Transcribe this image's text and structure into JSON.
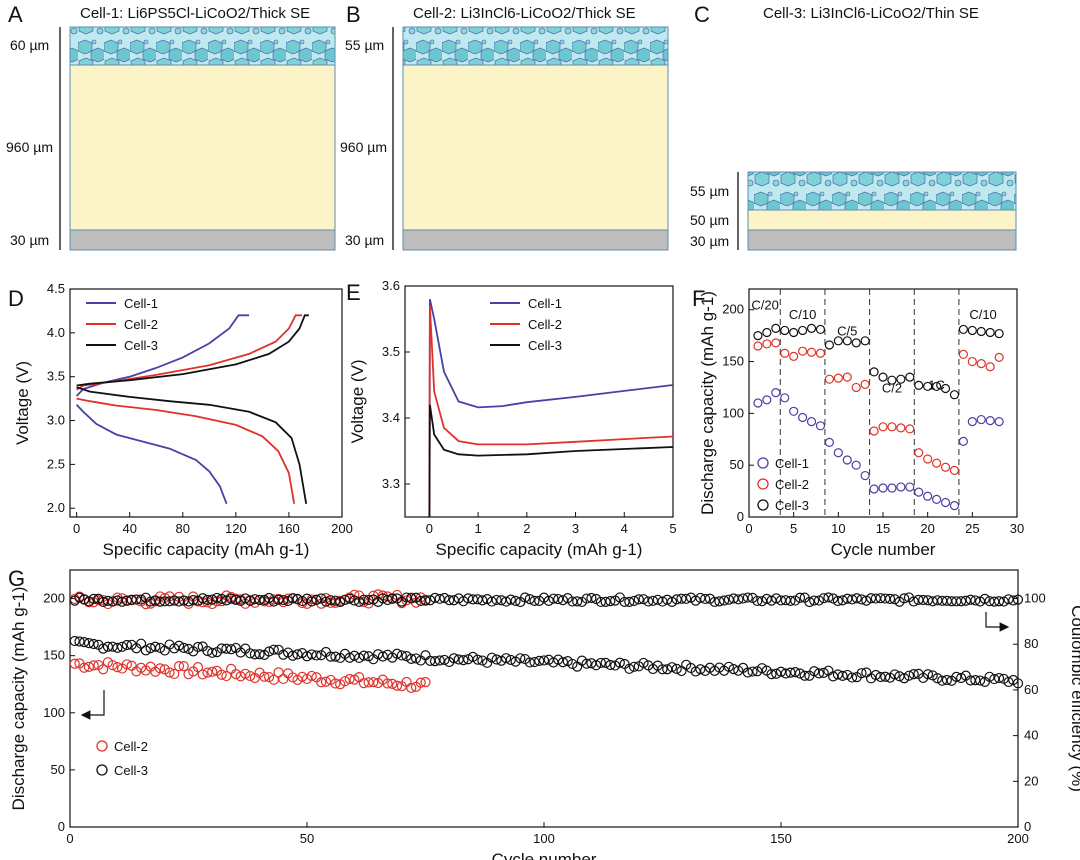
{
  "figure": {
    "panels": {
      "A": {
        "letter": "A",
        "title": "Cell-1: Li6PS5Cl-LiCoO2/Thick SE",
        "layers": [
          "60 µm",
          "960 µm",
          "30 µm"
        ]
      },
      "B": {
        "letter": "B",
        "title": "Cell-2: Li3InCl6-LiCoO2/Thick SE",
        "layers": [
          "55 µm",
          "960 µm",
          "30 µm"
        ]
      },
      "C": {
        "letter": "C",
        "title": "Cell-3: Li3InCl6-LiCoO2/Thin SE",
        "layers": [
          "55 µm",
          "50 µm",
          "30 µm"
        ]
      },
      "D": {
        "letter": "D"
      },
      "E": {
        "letter": "E"
      },
      "F": {
        "letter": "F"
      },
      "G": {
        "letter": "G"
      }
    }
  },
  "colors": {
    "cell1": "#4b3fa8",
    "cell2": "#e0322a",
    "cell3": "#111111",
    "se": "#7ecfd6",
    "cathode": "#fdf3c8",
    "current_collector": "#bdbdbd"
  },
  "chart_data": [
    {
      "panel": "D",
      "type": "line",
      "xlabel": "Specific capacity (mAh g-1)",
      "ylabel": "Voltage (V)",
      "xlim": [
        -5,
        200
      ],
      "ylim": [
        1.9,
        4.5
      ],
      "xticks": [
        0,
        40,
        80,
        120,
        160,
        200
      ],
      "yticks": [
        2.0,
        2.5,
        3.0,
        3.5,
        4.0,
        4.5
      ],
      "series": [
        {
          "name": "Cell-1",
          "charge": [
            [
              0,
              3.28
            ],
            [
              5,
              3.36
            ],
            [
              20,
              3.43
            ],
            [
              40,
              3.5
            ],
            [
              60,
              3.6
            ],
            [
              80,
              3.72
            ],
            [
              100,
              3.88
            ],
            [
              115,
              4.05
            ],
            [
              122,
              4.2
            ],
            [
              130,
              4.2
            ]
          ],
          "discharge": [
            [
              0,
              3.18
            ],
            [
              5,
              3.1
            ],
            [
              15,
              2.96
            ],
            [
              30,
              2.84
            ],
            [
              50,
              2.76
            ],
            [
              70,
              2.68
            ],
            [
              90,
              2.55
            ],
            [
              100,
              2.42
            ],
            [
              108,
              2.25
            ],
            [
              113,
              2.05
            ]
          ]
        },
        {
          "name": "Cell-2",
          "charge": [
            [
              0,
              3.35
            ],
            [
              5,
              3.4
            ],
            [
              30,
              3.45
            ],
            [
              60,
              3.52
            ],
            [
              100,
              3.63
            ],
            [
              130,
              3.76
            ],
            [
              150,
              3.9
            ],
            [
              160,
              4.05
            ],
            [
              165,
              4.2
            ],
            [
              170,
              4.2
            ]
          ],
          "discharge": [
            [
              0,
              3.25
            ],
            [
              10,
              3.22
            ],
            [
              30,
              3.17
            ],
            [
              60,
              3.12
            ],
            [
              90,
              3.05
            ],
            [
              120,
              2.95
            ],
            [
              140,
              2.82
            ],
            [
              152,
              2.65
            ],
            [
              160,
              2.4
            ],
            [
              164,
              2.05
            ]
          ]
        },
        {
          "name": "Cell-3",
          "charge": [
            [
              0,
              3.4
            ],
            [
              10,
              3.42
            ],
            [
              40,
              3.46
            ],
            [
              80,
              3.53
            ],
            [
              120,
              3.64
            ],
            [
              145,
              3.76
            ],
            [
              160,
              3.9
            ],
            [
              168,
              4.05
            ],
            [
              172,
              4.2
            ],
            [
              175,
              4.2
            ]
          ],
          "discharge": [
            [
              0,
              3.38
            ],
            [
              10,
              3.33
            ],
            [
              40,
              3.27
            ],
            [
              70,
              3.22
            ],
            [
              100,
              3.18
            ],
            [
              130,
              3.1
            ],
            [
              150,
              2.98
            ],
            [
              162,
              2.8
            ],
            [
              168,
              2.5
            ],
            [
              173,
              2.05
            ]
          ]
        }
      ],
      "legend": [
        "Cell-1",
        "Cell-2",
        "Cell-3"
      ]
    },
    {
      "panel": "E",
      "type": "line",
      "xlabel": "Specific capacity (mAh g-1)",
      "ylabel": "Voltage (V)",
      "xlim": [
        -0.5,
        5
      ],
      "ylim": [
        3.25,
        3.6
      ],
      "xticks": [
        0,
        1,
        2,
        3,
        4,
        5
      ],
      "yticks": [
        3.3,
        3.4,
        3.5,
        3.6
      ],
      "series": [
        {
          "name": "Cell-1",
          "points": [
            [
              0,
              3.25
            ],
            [
              0.01,
              3.58
            ],
            [
              0.1,
              3.55
            ],
            [
              0.3,
              3.47
            ],
            [
              0.6,
              3.425
            ],
            [
              1.0,
              3.416
            ],
            [
              1.5,
              3.418
            ],
            [
              2,
              3.424
            ],
            [
              3,
              3.432
            ],
            [
              4,
              3.441
            ],
            [
              5,
              3.45
            ]
          ]
        },
        {
          "name": "Cell-2",
          "points": [
            [
              0,
              3.25
            ],
            [
              0.01,
              3.57
            ],
            [
              0.1,
              3.44
            ],
            [
              0.3,
              3.385
            ],
            [
              0.6,
              3.365
            ],
            [
              1.0,
              3.36
            ],
            [
              2,
              3.36
            ],
            [
              3,
              3.364
            ],
            [
              4,
              3.368
            ],
            [
              5,
              3.372
            ]
          ]
        },
        {
          "name": "Cell-3",
          "points": [
            [
              0,
              3.25
            ],
            [
              0.01,
              3.42
            ],
            [
              0.1,
              3.375
            ],
            [
              0.3,
              3.352
            ],
            [
              0.6,
              3.345
            ],
            [
              1.0,
              3.343
            ],
            [
              2,
              3.345
            ],
            [
              3,
              3.35
            ],
            [
              4,
              3.353
            ],
            [
              5,
              3.356
            ]
          ]
        }
      ],
      "legend": [
        "Cell-1",
        "Cell-2",
        "Cell-3"
      ]
    },
    {
      "panel": "F",
      "type": "scatter",
      "xlabel": "Cycle number",
      "ylabel": "Discharge capacity (mAh g-1)",
      "xlim": [
        0,
        30
      ],
      "ylim": [
        0,
        220
      ],
      "xticks": [
        0,
        5,
        10,
        15,
        20,
        25,
        30
      ],
      "yticks": [
        0,
        50,
        100,
        150,
        200
      ],
      "rate_labels": [
        "C/20",
        "C/10",
        "C/5",
        "C/2",
        "1C",
        "C/10"
      ],
      "rate_boundaries": [
        3.5,
        8.5,
        13.5,
        18.5,
        23.5
      ],
      "series": [
        {
          "name": "Cell-1",
          "values": [
            110,
            113,
            120,
            115,
            102,
            96,
            92,
            88,
            72,
            62,
            55,
            50,
            40,
            27,
            28,
            28,
            29,
            29,
            24,
            20,
            17,
            14,
            11,
            73,
            92,
            94,
            93,
            92
          ]
        },
        {
          "name": "Cell-2",
          "values": [
            165,
            167,
            168,
            158,
            155,
            160,
            159,
            158,
            133,
            134,
            135,
            125,
            128,
            83,
            87,
            87,
            86,
            85,
            62,
            56,
            52,
            48,
            45,
            157,
            150,
            148,
            145,
            154
          ]
        },
        {
          "name": "Cell-3",
          "values": [
            175,
            178,
            182,
            180,
            178,
            180,
            182,
            181,
            166,
            170,
            170,
            168,
            170,
            140,
            135,
            132,
            133,
            135,
            127,
            126,
            126,
            124,
            118,
            181,
            180,
            179,
            178,
            177
          ]
        }
      ],
      "legend": [
        "Cell-1",
        "Cell-2",
        "Cell-3"
      ]
    },
    {
      "panel": "G",
      "type": "scatter",
      "xlabel": "Cycle number",
      "ylabel": "Discharge capacity (mAh g-1)",
      "y2label": "Coulombic efficiency (%)",
      "xlim": [
        0,
        200
      ],
      "ylim": [
        0,
        225
      ],
      "y2lim": [
        0,
        112.5
      ],
      "xticks": [
        0,
        50,
        100,
        150,
        200
      ],
      "yticks": [
        0,
        50,
        100,
        150,
        200
      ],
      "y2ticks": [
        0,
        20,
        40,
        60,
        80,
        100
      ],
      "series": [
        {
          "name": "Cell-2",
          "metric": "capacity",
          "x_range": [
            1,
            75
          ],
          "start": 143,
          "end": 124,
          "noise": 4
        },
        {
          "name": "Cell-3",
          "metric": "capacity",
          "x_range": [
            1,
            200
          ],
          "start": 160,
          "end": 128,
          "noise": 3
        },
        {
          "name": "Cell-2",
          "metric": "coulombic_efficiency",
          "x_range": [
            1,
            75
          ],
          "start": 99,
          "end": 100,
          "noise": 2
        },
        {
          "name": "Cell-3",
          "metric": "coulombic_efficiency",
          "x_range": [
            1,
            200
          ],
          "start": 99.5,
          "end": 99.5,
          "noise": 1
        }
      ],
      "legend": [
        "Cell-2",
        "Cell-3"
      ]
    }
  ]
}
